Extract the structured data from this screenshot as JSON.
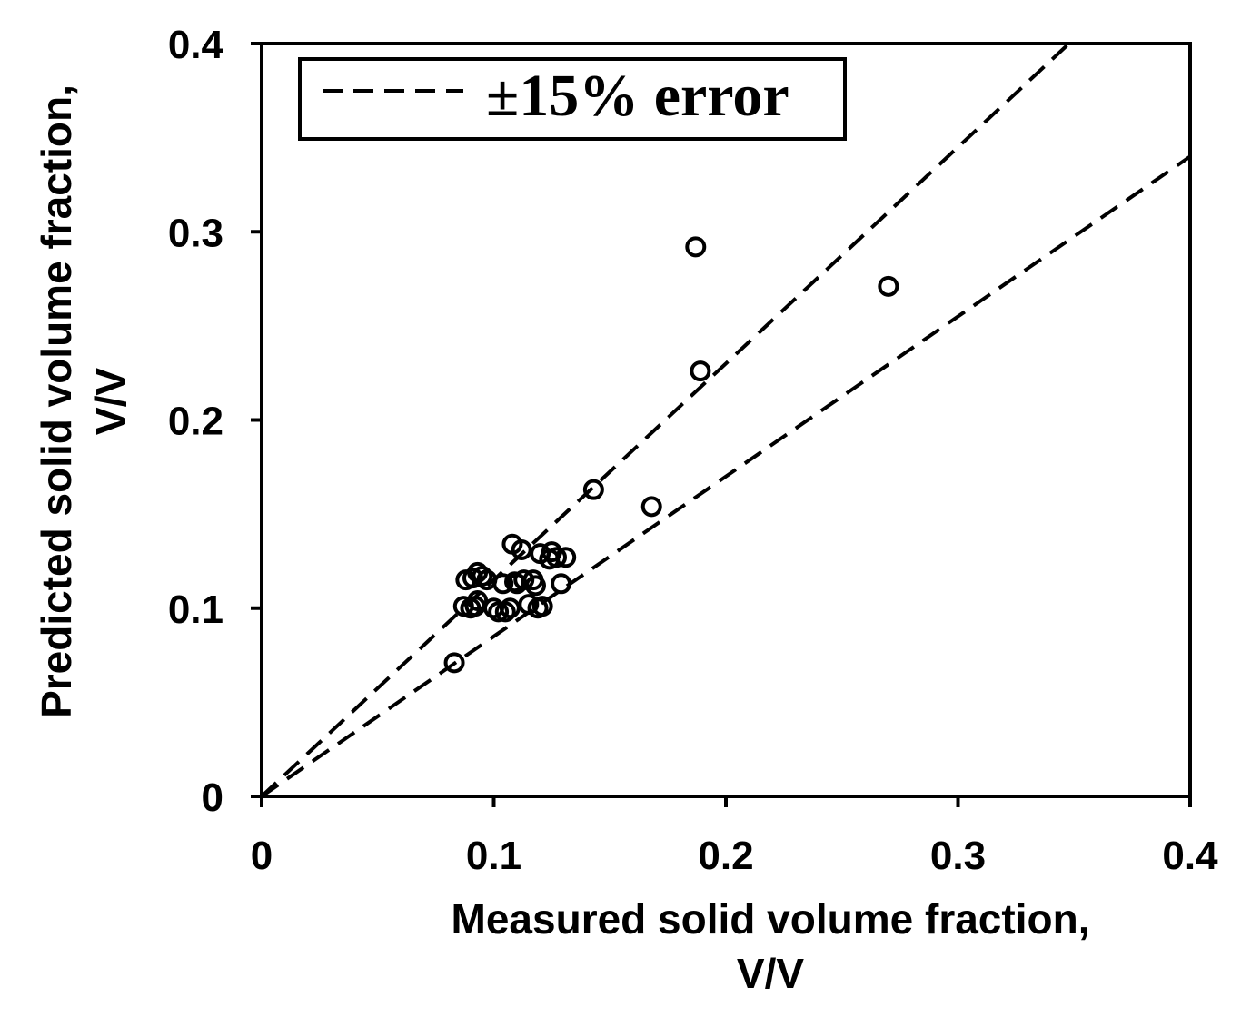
{
  "chart_data": {
    "type": "scatter",
    "xlabel": "Measured solid volume fraction,",
    "xlabel_unit": "V/V",
    "ylabel": "Predicted solid volume fraction,",
    "ylabel_unit": "V/V",
    "xlim": [
      0,
      0.4
    ],
    "ylim": [
      0,
      0.4
    ],
    "xticks": [
      0,
      0.1,
      0.2,
      0.3,
      0.4
    ],
    "yticks": [
      0,
      0.1,
      0.2,
      0.3,
      0.4
    ],
    "xtick_labels": [
      "0",
      "0.1",
      "0.2",
      "0.3",
      "0.4"
    ],
    "ytick_labels": [
      "0",
      "0.1",
      "0.2",
      "0.3",
      "0.4"
    ],
    "grid": false,
    "legend": {
      "placement": "top-left",
      "entries": [
        "±15% error"
      ]
    },
    "reference_lines": [
      {
        "label": "±15% error",
        "slope": 1.15,
        "style": "dashed"
      },
      {
        "label": "±15% error",
        "slope": 0.85,
        "style": "dashed"
      }
    ],
    "series": [
      {
        "marker": "open-circle",
        "x": [
          0.083,
          0.087,
          0.088,
          0.09,
          0.091,
          0.092,
          0.093,
          0.093,
          0.095,
          0.097,
          0.1,
          0.102,
          0.104,
          0.105,
          0.107,
          0.108,
          0.109,
          0.11,
          0.112,
          0.113,
          0.115,
          0.117,
          0.118,
          0.119,
          0.12,
          0.121,
          0.124,
          0.125,
          0.127,
          0.129,
          0.131,
          0.143,
          0.168,
          0.187,
          0.189,
          0.27
        ],
        "y": [
          0.071,
          0.101,
          0.115,
          0.1,
          0.116,
          0.101,
          0.119,
          0.104,
          0.117,
          0.115,
          0.1,
          0.098,
          0.113,
          0.098,
          0.1,
          0.134,
          0.114,
          0.113,
          0.131,
          0.115,
          0.102,
          0.115,
          0.112,
          0.1,
          0.129,
          0.101,
          0.126,
          0.13,
          0.127,
          0.113,
          0.127,
          0.163,
          0.154,
          0.292,
          0.226,
          0.271
        ]
      }
    ]
  }
}
